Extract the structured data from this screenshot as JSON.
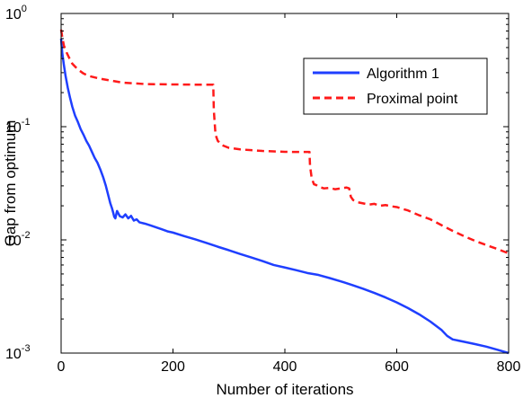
{
  "chart_data": {
    "type": "line",
    "title": "",
    "xlabel": "Number of iterations",
    "ylabel": "Gap from optimum",
    "xlim": [
      0,
      800
    ],
    "ylim": [
      0.001,
      1
    ],
    "yscale": "log",
    "grid": false,
    "legend_placement": "top-right",
    "x_ticks": [
      0,
      200,
      400,
      600,
      800
    ],
    "x_tick_labels": [
      "0",
      "200",
      "400",
      "600",
      "800"
    ],
    "y_ticks": [
      0.001,
      0.01,
      0.1,
      1
    ],
    "y_tick_labels": [
      {
        "base": "10",
        "exp": "-3"
      },
      {
        "base": "10",
        "exp": "-2"
      },
      {
        "base": "10",
        "exp": "-1"
      },
      {
        "base": "10",
        "exp": "0"
      }
    ],
    "series": [
      {
        "name": "Algorithm 1",
        "color": "#1f3fff",
        "style": "solid",
        "x": [
          0,
          2,
          5,
          8,
          12,
          16,
          20,
          25,
          30,
          35,
          40,
          45,
          50,
          55,
          60,
          65,
          70,
          75,
          80,
          85,
          88,
          91,
          93,
          95,
          97,
          100,
          105,
          110,
          115,
          120,
          125,
          130,
          135,
          140,
          150,
          160,
          170,
          180,
          190,
          200,
          220,
          240,
          260,
          280,
          300,
          320,
          340,
          360,
          380,
          400,
          420,
          440,
          460,
          480,
          500,
          520,
          540,
          560,
          580,
          600,
          620,
          640,
          660,
          680,
          690,
          700,
          720,
          740,
          760,
          780,
          800
        ],
        "y": [
          0.6,
          0.45,
          0.35,
          0.28,
          0.22,
          0.18,
          0.15,
          0.125,
          0.11,
          0.095,
          0.085,
          0.075,
          0.068,
          0.06,
          0.053,
          0.048,
          0.042,
          0.036,
          0.03,
          0.024,
          0.021,
          0.019,
          0.0175,
          0.016,
          0.0155,
          0.018,
          0.0162,
          0.0158,
          0.0168,
          0.0155,
          0.0163,
          0.0148,
          0.0152,
          0.0143,
          0.0139,
          0.0134,
          0.0129,
          0.0124,
          0.0119,
          0.0116,
          0.0108,
          0.0101,
          0.0094,
          0.0087,
          0.0081,
          0.0075,
          0.007,
          0.0065,
          0.006,
          0.0057,
          0.0054,
          0.0051,
          0.0049,
          0.0046,
          0.0043,
          0.004,
          0.0037,
          0.0034,
          0.0031,
          0.0028,
          0.0025,
          0.0022,
          0.0019,
          0.0016,
          0.00142,
          0.00132,
          0.00126,
          0.0012,
          0.00114,
          0.00107,
          0.001
        ]
      },
      {
        "name": "Proximal point",
        "color": "#ff1a1a",
        "style": "dashed",
        "x": [
          0,
          2,
          5,
          10,
          15,
          20,
          30,
          40,
          50,
          70,
          90,
          110,
          150,
          200,
          250,
          272,
          273,
          276,
          280,
          285,
          290,
          300,
          320,
          340,
          360,
          380,
          400,
          420,
          444,
          445,
          448,
          452,
          456,
          460,
          470,
          480,
          490,
          500,
          510,
          515,
          518,
          522,
          530,
          540,
          550,
          560,
          570,
          580,
          590,
          600,
          610,
          620,
          640,
          660,
          680,
          700,
          720,
          740,
          760,
          780,
          800
        ],
        "y": [
          0.72,
          0.62,
          0.52,
          0.45,
          0.4,
          0.36,
          0.32,
          0.295,
          0.28,
          0.265,
          0.255,
          0.245,
          0.238,
          0.236,
          0.235,
          0.235,
          0.14,
          0.085,
          0.075,
          0.071,
          0.068,
          0.065,
          0.063,
          0.062,
          0.061,
          0.0605,
          0.06,
          0.0598,
          0.0598,
          0.045,
          0.035,
          0.031,
          0.0305,
          0.0295,
          0.0285,
          0.0288,
          0.028,
          0.0285,
          0.029,
          0.0285,
          0.024,
          0.0225,
          0.0215,
          0.021,
          0.0205,
          0.0208,
          0.02,
          0.0203,
          0.0198,
          0.0195,
          0.0188,
          0.0182,
          0.0165,
          0.0152,
          0.0135,
          0.012,
          0.0108,
          0.0098,
          0.009,
          0.0083,
          0.0076
        ]
      }
    ]
  }
}
